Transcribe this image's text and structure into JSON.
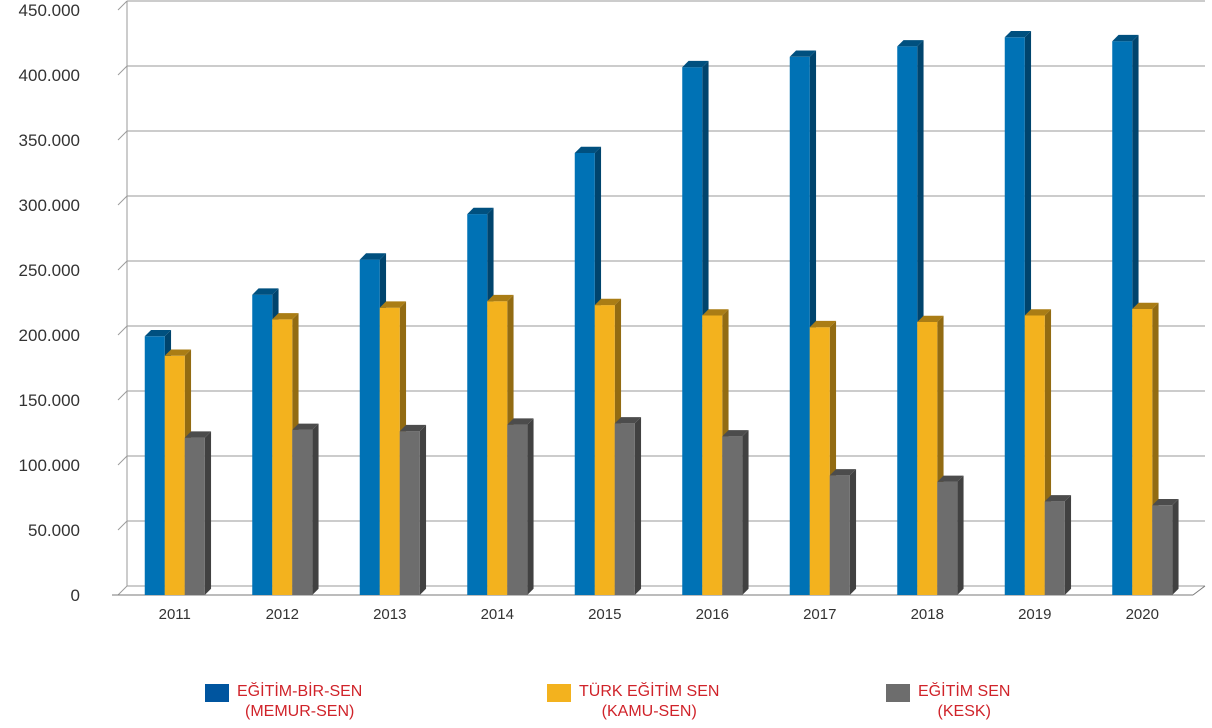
{
  "chart_data": {
    "type": "bar",
    "categories": [
      "2011",
      "2012",
      "2013",
      "2014",
      "2015",
      "2016",
      "2017",
      "2018",
      "2019",
      "2020"
    ],
    "series": [
      {
        "name_line1": "EĞİTİM-BİR-SEN",
        "name_line2": "(MEMUR-SEN)",
        "color": "#0072b5",
        "values": [
          199000,
          231000,
          258000,
          293000,
          340000,
          406000,
          414000,
          422000,
          429000,
          426000
        ]
      },
      {
        "name_line1": "TÜRK EĞİTİM SEN",
        "name_line2": "(KAMU-SEN)",
        "color": "#f3b21e",
        "values": [
          184000,
          212000,
          221000,
          226000,
          223000,
          215000,
          206000,
          210000,
          215000,
          220000
        ]
      },
      {
        "name_line1": "EĞİTİM SEN",
        "name_line2": "(KESK)",
        "color": "#6d6d6d",
        "values": [
          121000,
          127000,
          126000,
          131000,
          132000,
          122000,
          92000,
          87000,
          72000,
          69000
        ]
      }
    ],
    "legend_colors": [
      "#00559f",
      "#f3b21e",
      "#6d6d6d"
    ],
    "legend_text_color": "#d0232a",
    "yticks": [
      "0",
      "50.000",
      "100.000",
      "150.000",
      "200.000",
      "250.000",
      "300.000",
      "350.000",
      "400.000",
      "450.000"
    ],
    "ylim": [
      0,
      450000
    ],
    "grid": true,
    "legend_position": "bottom"
  }
}
